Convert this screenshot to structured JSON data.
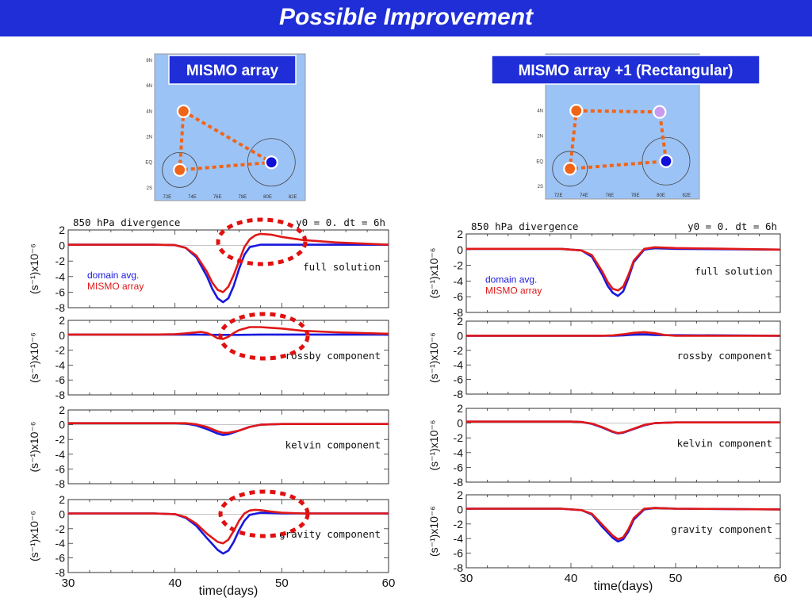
{
  "slide_title": "Possible Improvement",
  "colors": {
    "title_bg": "#1f2ed6",
    "map_bg": "#9cc3f5",
    "domain": "#1818e0",
    "mismo": "#e01818",
    "line_orange": "#f06418",
    "light_purple": "#c89af0"
  },
  "maps": [
    {
      "label": "MISMO array",
      "lat_ticks": [
        "8N",
        "6N",
        "4N",
        "2N",
        "EQ",
        "2S"
      ],
      "lon_ticks": [
        "72E",
        "74E",
        "76E",
        "78E",
        "80E",
        "82E"
      ],
      "stations": [
        {
          "lon": 73.3,
          "lat": 4.0,
          "color": "orange"
        },
        {
          "lon": 73.0,
          "lat": -0.6,
          "color": "orange"
        },
        {
          "lon": 80.3,
          "lat": 0.0,
          "color": "blue"
        }
      ]
    },
    {
      "label": "MISMO array +1 (Rectangular)",
      "lat_ticks": [
        "4N",
        "2N",
        "EQ",
        "2S"
      ],
      "lon_ticks": [
        "72E",
        "74E",
        "76E",
        "78E",
        "80E",
        "82E"
      ],
      "stations": [
        {
          "lon": 73.4,
          "lat": 4.0,
          "color": "orange"
        },
        {
          "lon": 72.9,
          "lat": -0.6,
          "color": "orange"
        },
        {
          "lon": 80.4,
          "lat": 0.0,
          "color": "blue"
        },
        {
          "lon": 79.9,
          "lat": 3.9,
          "color": "purple"
        }
      ]
    }
  ],
  "chart_data": [
    {
      "type": "line",
      "column": "left",
      "header_left": "850 hPa divergence",
      "header_right": "y0 = 0. dt = 6h",
      "xlabel": "time(days)",
      "xlim": [
        30,
        60
      ],
      "x_ticks": [
        30,
        40,
        50,
        60
      ],
      "ylabel": "(s⁻¹)x10⁻⁶",
      "panels": [
        {
          "label": "full solution",
          "ylim": [
            -8,
            2
          ],
          "y_ticks": [
            2,
            0,
            -2,
            -4,
            -6,
            -8
          ],
          "legend": [
            "domain avg.",
            "MISMO array"
          ],
          "series": [
            {
              "name": "domain avg.",
              "x": [
                30,
                38,
                40,
                41,
                42,
                43,
                43.5,
                44,
                44.5,
                45,
                45.5,
                46,
                46.5,
                47,
                48,
                50,
                60
              ],
              "y": [
                0.1,
                0.1,
                0.05,
                -0.3,
                -1.5,
                -4.0,
                -5.6,
                -6.8,
                -7.3,
                -6.8,
                -5.2,
                -3.0,
                -1.2,
                -0.2,
                0.1,
                0.1,
                0.1
              ]
            },
            {
              "name": "MISMO array",
              "x": [
                30,
                38,
                40,
                41,
                42,
                43,
                43.5,
                44,
                44.5,
                45,
                45.5,
                46,
                46.5,
                47,
                47.5,
                48,
                49,
                50,
                52,
                55,
                60
              ],
              "y": [
                0.1,
                0.1,
                0.05,
                -0.3,
                -1.3,
                -3.4,
                -4.8,
                -5.7,
                -6.0,
                -5.3,
                -3.8,
                -2.0,
                -0.2,
                0.8,
                1.3,
                1.5,
                1.4,
                1.1,
                0.7,
                0.4,
                0.1
              ]
            }
          ]
        },
        {
          "label": "rossby component",
          "ylim": [
            -8,
            2
          ],
          "y_ticks": [
            2,
            0,
            -2,
            -4,
            -6,
            -8
          ],
          "series": [
            {
              "name": "domain avg.",
              "x": [
                30,
                42,
                44,
                46,
                48,
                60
              ],
              "y": [
                0.1,
                0.1,
                0.05,
                0.05,
                0.1,
                0.1
              ]
            },
            {
              "name": "MISMO array",
              "x": [
                30,
                38,
                40,
                41,
                42,
                42.5,
                43,
                43.5,
                44,
                44.5,
                45,
                45.5,
                46,
                47,
                48,
                49,
                50,
                52,
                55,
                60
              ],
              "y": [
                0.1,
                0.1,
                0.15,
                0.25,
                0.4,
                0.45,
                0.3,
                0.0,
                -0.4,
                -0.5,
                -0.2,
                0.3,
                0.7,
                1.1,
                1.1,
                1.0,
                0.9,
                0.6,
                0.4,
                0.2
              ]
            }
          ]
        },
        {
          "label": "kelvin component",
          "ylim": [
            -8,
            2
          ],
          "y_ticks": [
            2,
            0,
            -2,
            -4,
            -6,
            -8
          ],
          "series": [
            {
              "name": "domain avg.",
              "x": [
                30,
                40,
                41,
                42,
                43,
                44,
                44.5,
                45,
                46,
                47,
                48,
                50,
                60
              ],
              "y": [
                0.2,
                0.2,
                0.15,
                -0.1,
                -0.6,
                -1.2,
                -1.4,
                -1.3,
                -0.8,
                -0.3,
                0.0,
                0.1,
                0.1
              ]
            },
            {
              "name": "MISMO array",
              "x": [
                30,
                40,
                41,
                42,
                43,
                44,
                44.5,
                45,
                46,
                47,
                48,
                50,
                60
              ],
              "y": [
                0.2,
                0.2,
                0.2,
                0.05,
                -0.3,
                -0.9,
                -1.1,
                -1.1,
                -0.8,
                -0.3,
                0.0,
                0.1,
                0.1
              ]
            }
          ]
        },
        {
          "label": "gravity component",
          "ylim": [
            -8,
            2
          ],
          "y_ticks": [
            2,
            0,
            -2,
            -4,
            -6,
            -8
          ],
          "series": [
            {
              "name": "domain avg.",
              "x": [
                30,
                38,
                40,
                41,
                42,
                43,
                44,
                44.5,
                45,
                45.5,
                46,
                46.5,
                47,
                48,
                50,
                60
              ],
              "y": [
                0.1,
                0.1,
                0.0,
                -0.5,
                -1.6,
                -3.3,
                -4.9,
                -5.4,
                -5.0,
                -3.8,
                -2.2,
                -0.9,
                -0.1,
                0.2,
                0.1,
                0.1
              ]
            },
            {
              "name": "MISMO array",
              "x": [
                30,
                38,
                40,
                41,
                42,
                43,
                44,
                44.5,
                45,
                45.5,
                46,
                46.5,
                47,
                47.5,
                48,
                49,
                50,
                52,
                60
              ],
              "y": [
                0.1,
                0.1,
                0.0,
                -0.4,
                -1.3,
                -2.7,
                -3.8,
                -4.0,
                -3.5,
                -2.3,
                -0.9,
                0.1,
                0.5,
                0.6,
                0.55,
                0.35,
                0.2,
                0.1,
                0.1
              ]
            }
          ]
        }
      ]
    },
    {
      "type": "line",
      "column": "right",
      "header_left": "850 hPa divergence",
      "header_right": "y0 = 0. dt = 6h",
      "xlabel": "time(days)",
      "xlim": [
        30,
        60
      ],
      "x_ticks": [
        30,
        40,
        50,
        60
      ],
      "ylabel": "(s⁻¹)x10⁻⁶",
      "panels": [
        {
          "label": "full solution",
          "ylim": [
            -8,
            2
          ],
          "y_ticks": [
            2,
            0,
            -2,
            -4,
            -6,
            -8
          ],
          "legend": [
            "domain avg.",
            "MISMO array"
          ],
          "series": [
            {
              "name": "domain avg.",
              "x": [
                30,
                39,
                41,
                42,
                43,
                43.5,
                44,
                44.5,
                45,
                45.5,
                46,
                47,
                48,
                50,
                60
              ],
              "y": [
                0.1,
                0.1,
                -0.1,
                -0.9,
                -3.2,
                -4.6,
                -5.5,
                -5.9,
                -5.3,
                -3.6,
                -1.6,
                0.0,
                0.2,
                0.1,
                0.0
              ]
            },
            {
              "name": "MISMO array",
              "x": [
                30,
                39,
                41,
                42,
                43,
                43.5,
                44,
                44.5,
                45,
                45.5,
                46,
                47,
                48,
                50,
                60
              ],
              "y": [
                0.1,
                0.1,
                -0.1,
                -0.7,
                -2.8,
                -4.1,
                -5.0,
                -5.2,
                -4.7,
                -3.2,
                -1.4,
                0.1,
                0.3,
                0.2,
                0.0
              ]
            }
          ]
        },
        {
          "label": "rossby component",
          "ylim": [
            -8,
            2
          ],
          "y_ticks": [
            2,
            0,
            -2,
            -4,
            -6,
            -8
          ],
          "series": [
            {
              "name": "domain avg.",
              "x": [
                30,
                44,
                45,
                46,
                47,
                48,
                60
              ],
              "y": [
                0.0,
                0.0,
                0.05,
                0.15,
                0.2,
                0.1,
                0.0
              ]
            },
            {
              "name": "MISMO array",
              "x": [
                30,
                43,
                44,
                45,
                46,
                47,
                48,
                49,
                50,
                60
              ],
              "y": [
                0.0,
                0.0,
                0.05,
                0.2,
                0.4,
                0.5,
                0.35,
                0.1,
                0.0,
                0.0
              ]
            }
          ]
        },
        {
          "label": "kelvin component",
          "ylim": [
            -8,
            2
          ],
          "y_ticks": [
            2,
            0,
            -2,
            -4,
            -6,
            -8
          ],
          "series": [
            {
              "name": "domain avg.",
              "x": [
                30,
                40,
                41,
                42,
                43,
                44,
                44.5,
                45,
                46,
                47,
                48,
                50,
                60
              ],
              "y": [
                0.2,
                0.2,
                0.15,
                -0.1,
                -0.6,
                -1.2,
                -1.4,
                -1.3,
                -0.8,
                -0.3,
                0.0,
                0.1,
                0.1
              ]
            },
            {
              "name": "MISMO array",
              "x": [
                30,
                40,
                41,
                42,
                43,
                44,
                44.5,
                45,
                46,
                47,
                48,
                50,
                60
              ],
              "y": [
                0.2,
                0.2,
                0.15,
                -0.05,
                -0.55,
                -1.15,
                -1.35,
                -1.25,
                -0.75,
                -0.25,
                0.0,
                0.1,
                0.1
              ]
            }
          ]
        },
        {
          "label": "gravity component",
          "ylim": [
            -8,
            2
          ],
          "y_ticks": [
            2,
            0,
            -2,
            -4,
            -6,
            -8
          ],
          "series": [
            {
              "name": "domain avg.",
              "x": [
                30,
                39,
                41,
                42,
                43,
                44,
                44.5,
                45,
                45.5,
                46,
                47,
                48,
                50,
                60
              ],
              "y": [
                0.1,
                0.1,
                -0.1,
                -0.7,
                -2.4,
                -3.9,
                -4.4,
                -4.1,
                -3.0,
                -1.4,
                0.0,
                0.2,
                0.1,
                0.0
              ]
            },
            {
              "name": "MISMO array",
              "x": [
                30,
                39,
                41,
                42,
                43,
                44,
                44.5,
                45,
                45.5,
                46,
                47,
                48,
                50,
                60
              ],
              "y": [
                0.1,
                0.1,
                -0.1,
                -0.6,
                -2.1,
                -3.6,
                -4.1,
                -3.8,
                -2.7,
                -1.2,
                0.1,
                0.2,
                0.1,
                0.0
              ]
            }
          ]
        }
      ]
    }
  ]
}
